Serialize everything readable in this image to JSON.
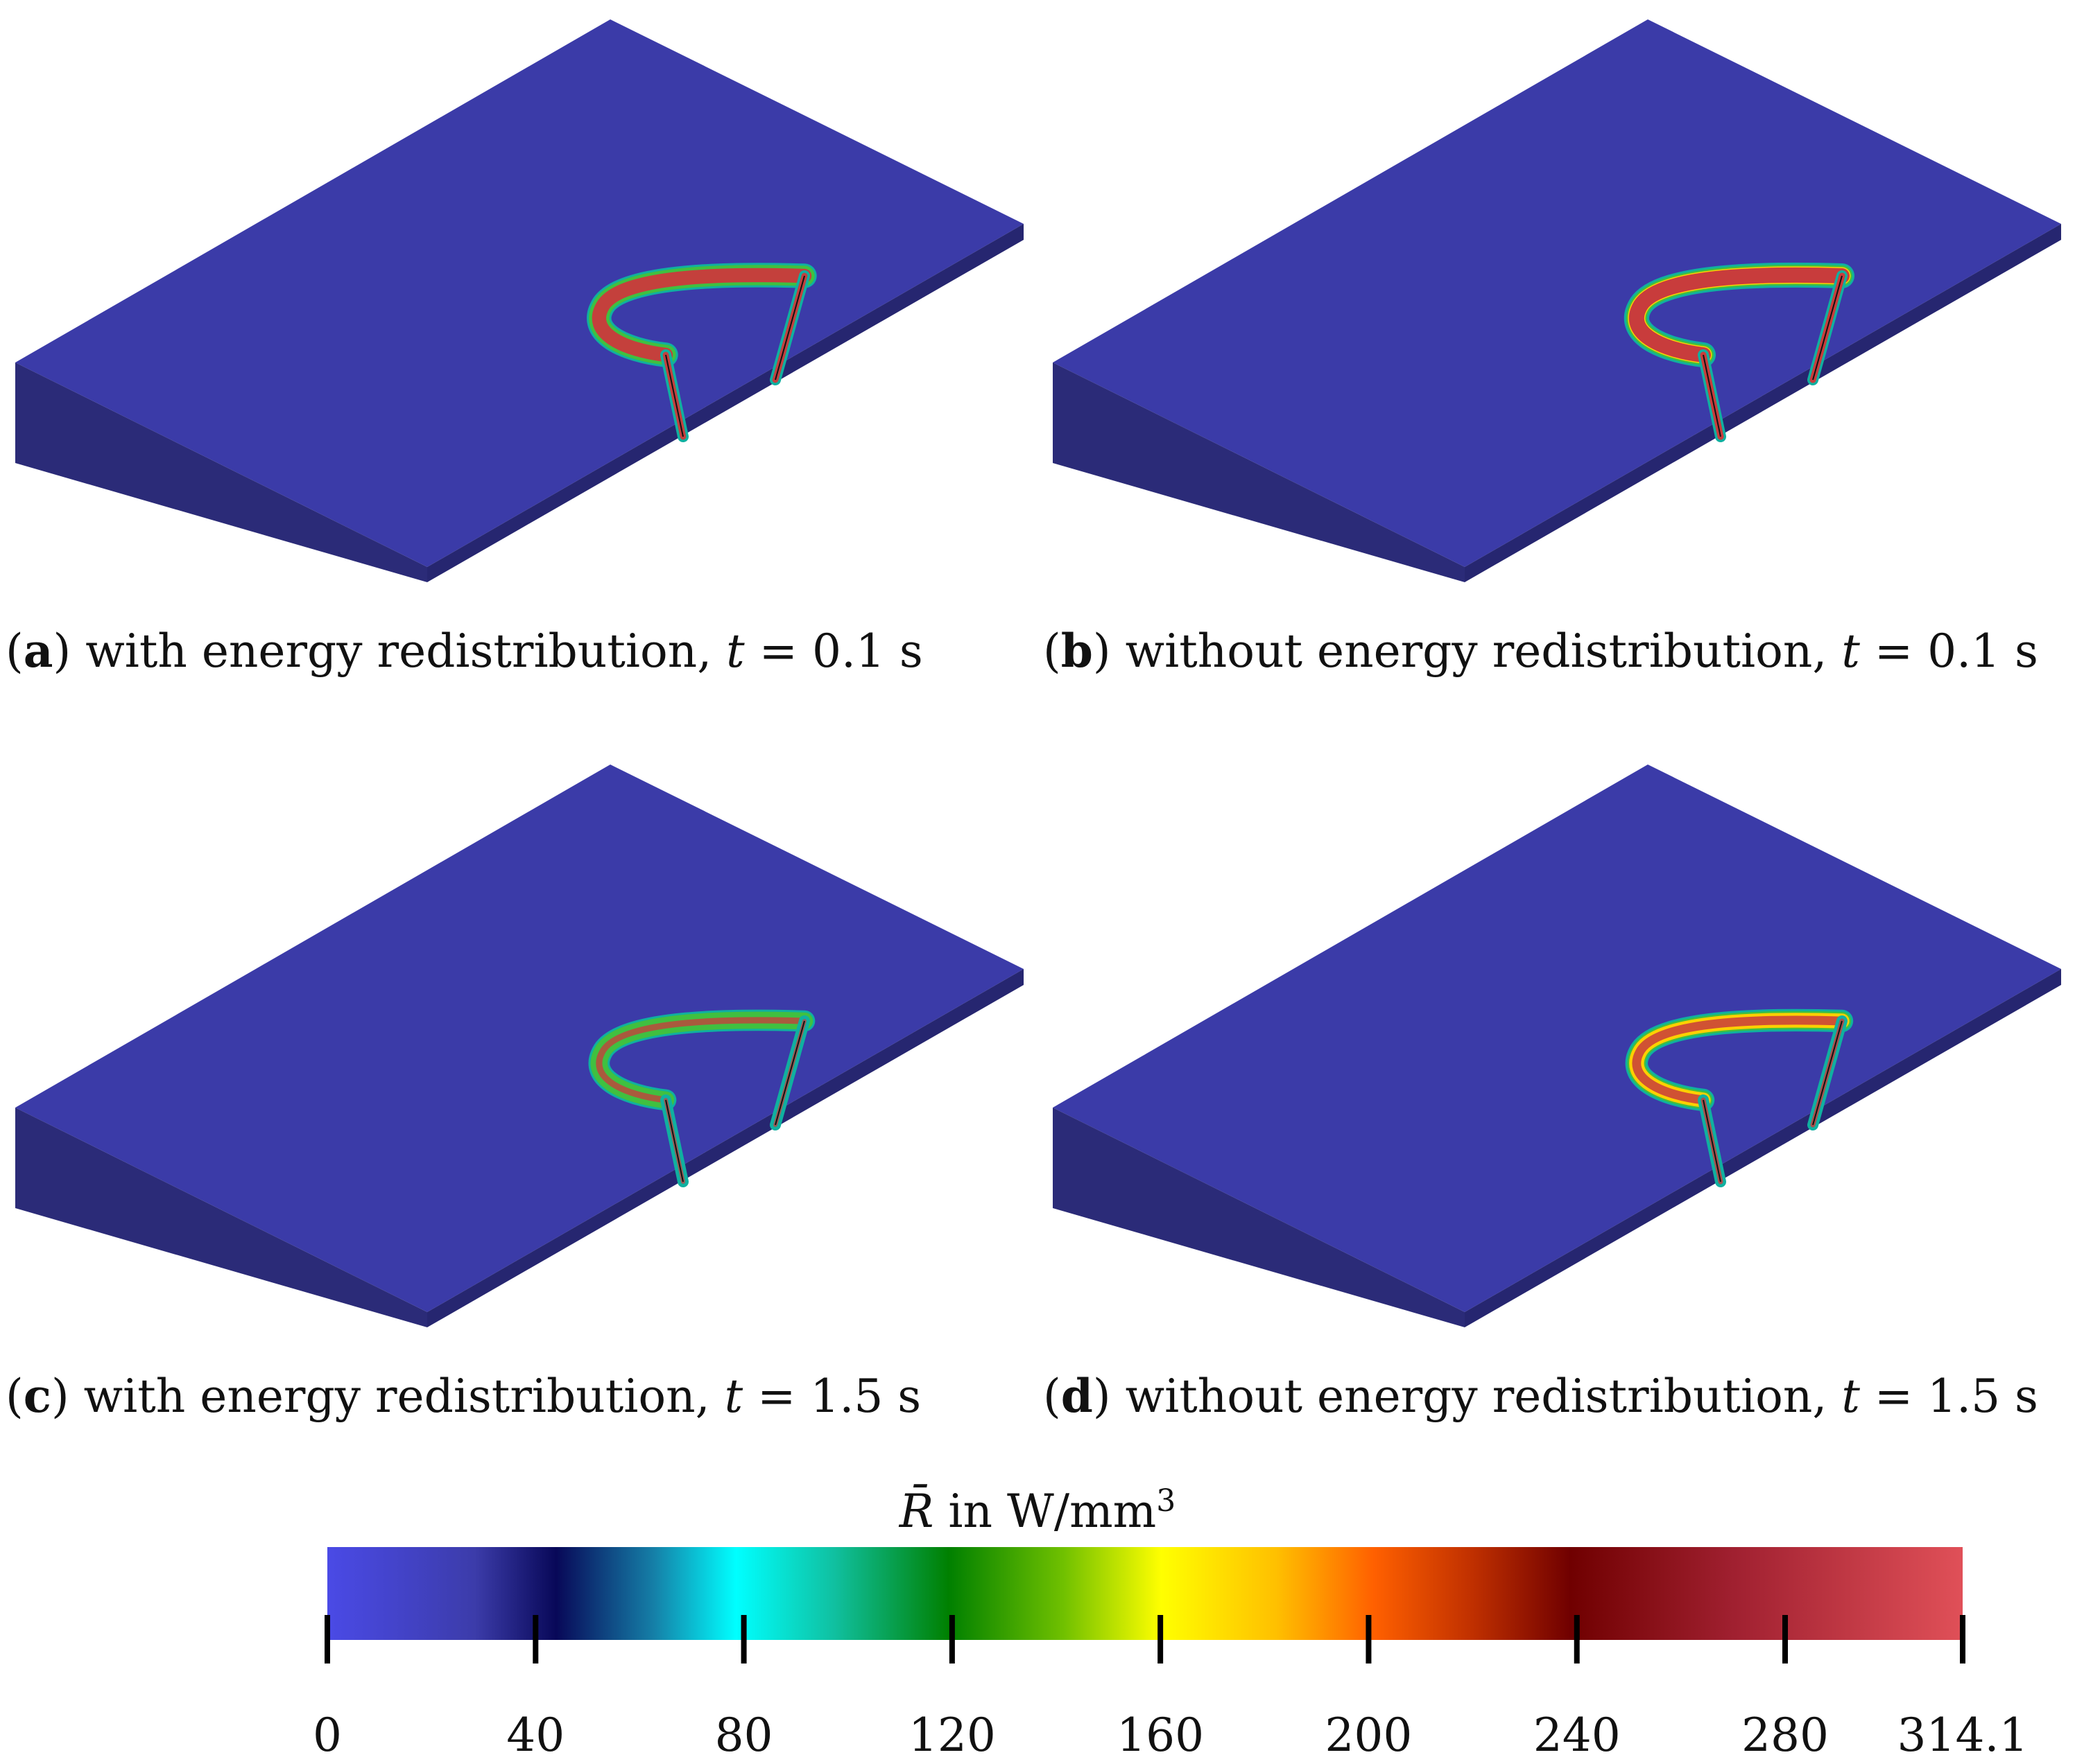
{
  "panels": [
    {
      "id": "a",
      "letter": "a",
      "text": " with energy redistribution, ",
      "time_var": "t",
      "time_value": " = 0.1 s",
      "variant": "with",
      "intensity": 0.95
    },
    {
      "id": "b",
      "letter": "b",
      "text": " without energy redistribution, ",
      "time_var": "t",
      "time_value": " = 0.1 s",
      "variant": "without",
      "intensity": 1.0
    },
    {
      "id": "c",
      "letter": "c",
      "text": " with energy redistribution, ",
      "time_var": "t",
      "time_value": " = 1.5 s",
      "variant": "with",
      "intensity": 0.55
    },
    {
      "id": "d",
      "letter": "d",
      "text": " without energy redistribution, ",
      "time_var": "t",
      "time_value": " = 1.5 s",
      "variant": "without",
      "intensity": 0.7
    }
  ],
  "colorbar": {
    "label_symbol": "R̄",
    "label_text": " in W/mm",
    "label_exp": "3",
    "min": 0,
    "max": 314.1,
    "ticks": [
      "0",
      "40",
      "80",
      "120",
      "160",
      "200",
      "240",
      "280",
      "314.1"
    ],
    "tick_values": [
      0,
      40,
      80,
      120,
      160,
      200,
      240,
      280,
      314.1
    ]
  },
  "colors": {
    "top_face": "#3b3ba8",
    "front_face": "#2b2b78",
    "right_face": "#262670",
    "hot": "#c83c3c",
    "mid": "#ffd000",
    "warm": "#40c040",
    "cool": "#10b0a0"
  }
}
